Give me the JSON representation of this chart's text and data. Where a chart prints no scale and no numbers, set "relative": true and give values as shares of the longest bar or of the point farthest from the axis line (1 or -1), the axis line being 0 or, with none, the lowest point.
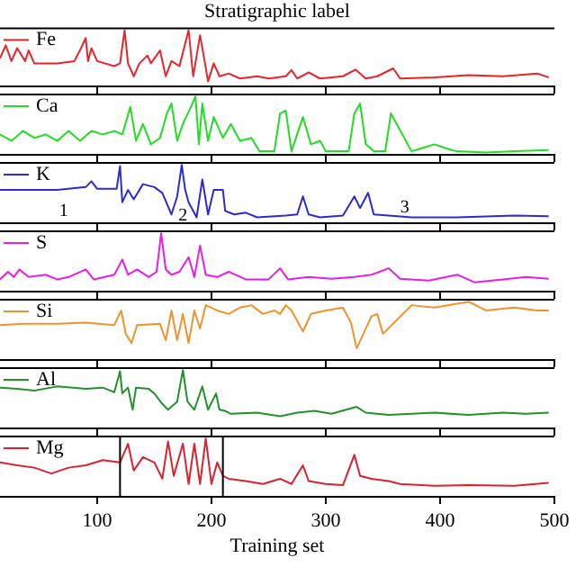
{
  "chart_data": [
    {
      "type": "line",
      "title": "Stratigraphic label",
      "relative": true,
      "xlim": [
        15,
        500
      ],
      "xticks": [
        100,
        200,
        300,
        400,
        500
      ],
      "tick_labels": false,
      "legend": "top left",
      "marker": "none",
      "series": [
        {
          "name": "Fe",
          "color": "#e8252b",
          "x": [
            15,
            20,
            25,
            30,
            37,
            40,
            45,
            65,
            80,
            85,
            90,
            92,
            95,
            100,
            115,
            120,
            124,
            127,
            132,
            137,
            144,
            147,
            155,
            160,
            165,
            172,
            180,
            184,
            190,
            194,
            197,
            202,
            207,
            215,
            225,
            240,
            250,
            265,
            270,
            275,
            285,
            295,
            315,
            326,
            335,
            345,
            359,
            365,
            395,
            425,
            455,
            485,
            495
          ],
          "values": [
            0.5,
            0.73,
            0.45,
            0.68,
            0.45,
            0.64,
            0.41,
            0.41,
            0.45,
            0.64,
            0.86,
            0.45,
            0.68,
            0.45,
            0.36,
            0.41,
            1.0,
            0.41,
            0.18,
            0.41,
            0.55,
            0.41,
            0.64,
            0.18,
            0.45,
            0.36,
            1.0,
            0.18,
            0.91,
            0.45,
            0.09,
            0.41,
            0.18,
            0.23,
            0.14,
            0.18,
            0.14,
            0.18,
            0.29,
            0.14,
            0.25,
            0.14,
            0.18,
            0.3,
            0.14,
            0.18,
            0.32,
            0.14,
            0.16,
            0.2,
            0.18,
            0.23,
            0.16
          ]
        }
      ]
    },
    {
      "type": "line",
      "relative": true,
      "xlim": [
        15,
        500
      ],
      "xticks": [
        100,
        200,
        300,
        400,
        500
      ],
      "tick_labels": false,
      "legend": "top left",
      "marker": "none",
      "series": [
        {
          "name": "Ca",
          "color": "#22dd22",
          "x": [
            15,
            25,
            35,
            45,
            55,
            65,
            75,
            85,
            95,
            105,
            115,
            122,
            129,
            134,
            140,
            147,
            155,
            161,
            165,
            170,
            175,
            182,
            186,
            189,
            192,
            197,
            202,
            210,
            217,
            225,
            235,
            242,
            255,
            260,
            265,
            270,
            280,
            287,
            295,
            300,
            320,
            325,
            330,
            335,
            342,
            352,
            357,
            375,
            385,
            395,
            410,
            415,
            440,
            465,
            495
          ],
          "values": [
            0.35,
            0.24,
            0.41,
            0.29,
            0.35,
            0.24,
            0.41,
            0.24,
            0.41,
            0.35,
            0.41,
            0.35,
            0.82,
            0.24,
            0.53,
            0.18,
            0.29,
            0.71,
            0.88,
            0.24,
            0.53,
            0.82,
            1.0,
            0.18,
            0.88,
            0.24,
            0.65,
            0.29,
            0.53,
            0.24,
            0.29,
            0.06,
            0.06,
            0.71,
            0.76,
            0.06,
            0.65,
            0.18,
            0.24,
            0.06,
            0.06,
            0.71,
            0.88,
            0.18,
            0.06,
            0.06,
            0.71,
            0.06,
            0.12,
            0.18,
            0.08,
            0.06,
            0.04,
            0.06,
            0.08
          ]
        }
      ]
    },
    {
      "type": "line",
      "relative": true,
      "xlim": [
        15,
        500
      ],
      "xticks": [
        100,
        200,
        300,
        400,
        500
      ],
      "tick_labels": false,
      "legend": "top left",
      "marker": "none",
      "annotations": [
        "1",
        "2",
        "3"
      ],
      "series": [
        {
          "name": "K",
          "color": "#2b2bd6",
          "x": [
            15,
            40,
            65,
            90,
            95,
            100,
            117,
            120,
            122,
            127,
            132,
            140,
            150,
            157,
            165,
            170,
            174,
            177,
            180,
            187,
            192,
            197,
            202,
            210,
            212,
            220,
            230,
            240,
            265,
            275,
            280,
            285,
            295,
            315,
            325,
            330,
            337,
            342,
            355,
            375,
            415,
            465,
            495
          ],
          "values": [
            0.57,
            0.57,
            0.57,
            0.62,
            0.72,
            0.59,
            0.59,
            0.98,
            0.36,
            0.57,
            0.41,
            0.67,
            0.62,
            0.52,
            0.15,
            0.46,
            1.0,
            0.57,
            0.36,
            0.1,
            0.75,
            0.15,
            0.57,
            0.57,
            0.21,
            0.15,
            0.18,
            0.1,
            0.13,
            0.15,
            0.46,
            0.15,
            0.1,
            0.13,
            0.46,
            0.26,
            0.52,
            0.15,
            0.13,
            0.1,
            0.1,
            0.13,
            0.12
          ]
        }
      ]
    },
    {
      "type": "line",
      "relative": true,
      "xlim": [
        15,
        500
      ],
      "xticks": [
        100,
        200,
        300,
        400,
        500
      ],
      "tick_labels": false,
      "legend": "top left",
      "marker": "none",
      "series": [
        {
          "name": "S",
          "color": "#e61ee6",
          "x": [
            15,
            22,
            27,
            32,
            40,
            55,
            65,
            75,
            90,
            97,
            115,
            122,
            127,
            135,
            145,
            152,
            156,
            160,
            165,
            172,
            180,
            185,
            190,
            195,
            205,
            215,
            230,
            250,
            260,
            267,
            285,
            305,
            325,
            340,
            355,
            365,
            390,
            415,
            430,
            455,
            475,
            495
          ],
          "values": [
            0.21,
            0.34,
            0.25,
            0.38,
            0.25,
            0.29,
            0.21,
            0.25,
            0.38,
            0.21,
            0.29,
            0.55,
            0.29,
            0.38,
            0.25,
            0.34,
            1.0,
            0.38,
            0.29,
            0.34,
            0.59,
            0.25,
            0.79,
            0.29,
            0.25,
            0.34,
            0.21,
            0.21,
            0.4,
            0.21,
            0.25,
            0.22,
            0.25,
            0.29,
            0.4,
            0.22,
            0.19,
            0.29,
            0.16,
            0.21,
            0.25,
            0.22
          ]
        }
      ]
    },
    {
      "type": "line",
      "relative": true,
      "xlim": [
        15,
        500
      ],
      "xticks": [
        100,
        200,
        300,
        400,
        500
      ],
      "tick_labels": false,
      "legend": "top left",
      "marker": "none",
      "series": [
        {
          "name": "Si",
          "color": "#f0922e",
          "x": [
            15,
            35,
            65,
            90,
            115,
            121,
            125,
            130,
            135,
            155,
            160,
            165,
            170,
            175,
            180,
            185,
            190,
            195,
            205,
            215,
            225,
            235,
            245,
            255,
            260,
            265,
            270,
            280,
            287,
            300,
            315,
            322,
            327,
            340,
            345,
            350,
            375,
            395,
            425,
            440,
            465,
            485,
            495
          ],
          "values": [
            0.6,
            0.62,
            0.62,
            0.64,
            0.6,
            0.85,
            0.45,
            0.29,
            0.6,
            0.62,
            0.34,
            0.85,
            0.34,
            0.79,
            0.29,
            0.85,
            0.54,
            0.94,
            0.85,
            0.79,
            0.9,
            0.94,
            0.79,
            0.85,
            0.79,
            0.94,
            0.85,
            0.49,
            0.79,
            0.85,
            0.9,
            0.64,
            0.2,
            0.75,
            0.79,
            0.45,
            0.94,
            0.9,
            1.0,
            0.85,
            0.9,
            0.85,
            0.85
          ]
        }
      ]
    },
    {
      "type": "line",
      "relative": true,
      "xlim": [
        15,
        500
      ],
      "xticks": [
        100,
        200,
        300,
        400,
        500
      ],
      "tick_labels": false,
      "legend": "top left",
      "marker": "none",
      "series": [
        {
          "name": "Al",
          "color": "#23922b",
          "x": [
            15,
            30,
            45,
            65,
            90,
            105,
            115,
            120,
            122,
            127,
            131,
            134,
            145,
            150,
            157,
            162,
            170,
            175,
            179,
            185,
            192,
            197,
            204,
            207,
            212,
            217,
            240,
            260,
            275,
            290,
            305,
            327,
            335,
            355,
            375,
            395,
            425,
            455,
            475,
            495
          ],
          "values": [
            0.7,
            0.68,
            0.65,
            0.72,
            0.68,
            0.7,
            0.62,
            0.98,
            0.6,
            0.7,
            0.32,
            0.7,
            0.68,
            0.6,
            0.42,
            0.32,
            0.46,
            1.0,
            0.46,
            0.32,
            0.72,
            0.32,
            0.6,
            0.32,
            0.3,
            0.25,
            0.27,
            0.21,
            0.27,
            0.3,
            0.25,
            0.37,
            0.27,
            0.23,
            0.25,
            0.27,
            0.23,
            0.27,
            0.25,
            0.27
          ]
        }
      ]
    },
    {
      "type": "line",
      "relative": true,
      "xlim": [
        15,
        500
      ],
      "xticks": [
        100,
        200,
        300,
        400,
        500
      ],
      "tick_labels": "x",
      "xlabel": "Training set",
      "legend": "top left",
      "marker": "none",
      "ref_lines": [
        {
          "axis": "x",
          "value": 120,
          "color": "#000000"
        },
        {
          "axis": "x",
          "value": 210,
          "color": "#000000"
        }
      ],
      "series": [
        {
          "name": "Mg",
          "color": "#d9232e",
          "x": [
            15,
            30,
            45,
            60,
            75,
            90,
            105,
            120,
            127,
            132,
            140,
            150,
            157,
            162,
            167,
            175,
            180,
            185,
            190,
            195,
            200,
            205,
            210,
            215,
            230,
            245,
            260,
            270,
            280,
            285,
            300,
            315,
            325,
            330,
            340,
            355,
            365,
            395,
            425,
            465,
            495
          ],
          "values": [
            0.59,
            0.54,
            0.5,
            0.4,
            0.5,
            0.54,
            0.63,
            0.59,
            0.91,
            0.45,
            0.68,
            0.59,
            0.31,
            0.95,
            0.36,
            0.91,
            0.22,
            0.91,
            0.22,
            1.0,
            0.22,
            0.59,
            0.36,
            0.31,
            0.27,
            0.22,
            0.31,
            0.22,
            0.54,
            0.27,
            0.22,
            0.2,
            0.72,
            0.36,
            0.31,
            0.27,
            0.22,
            0.19,
            0.2,
            0.19,
            0.24
          ]
        }
      ]
    }
  ]
}
